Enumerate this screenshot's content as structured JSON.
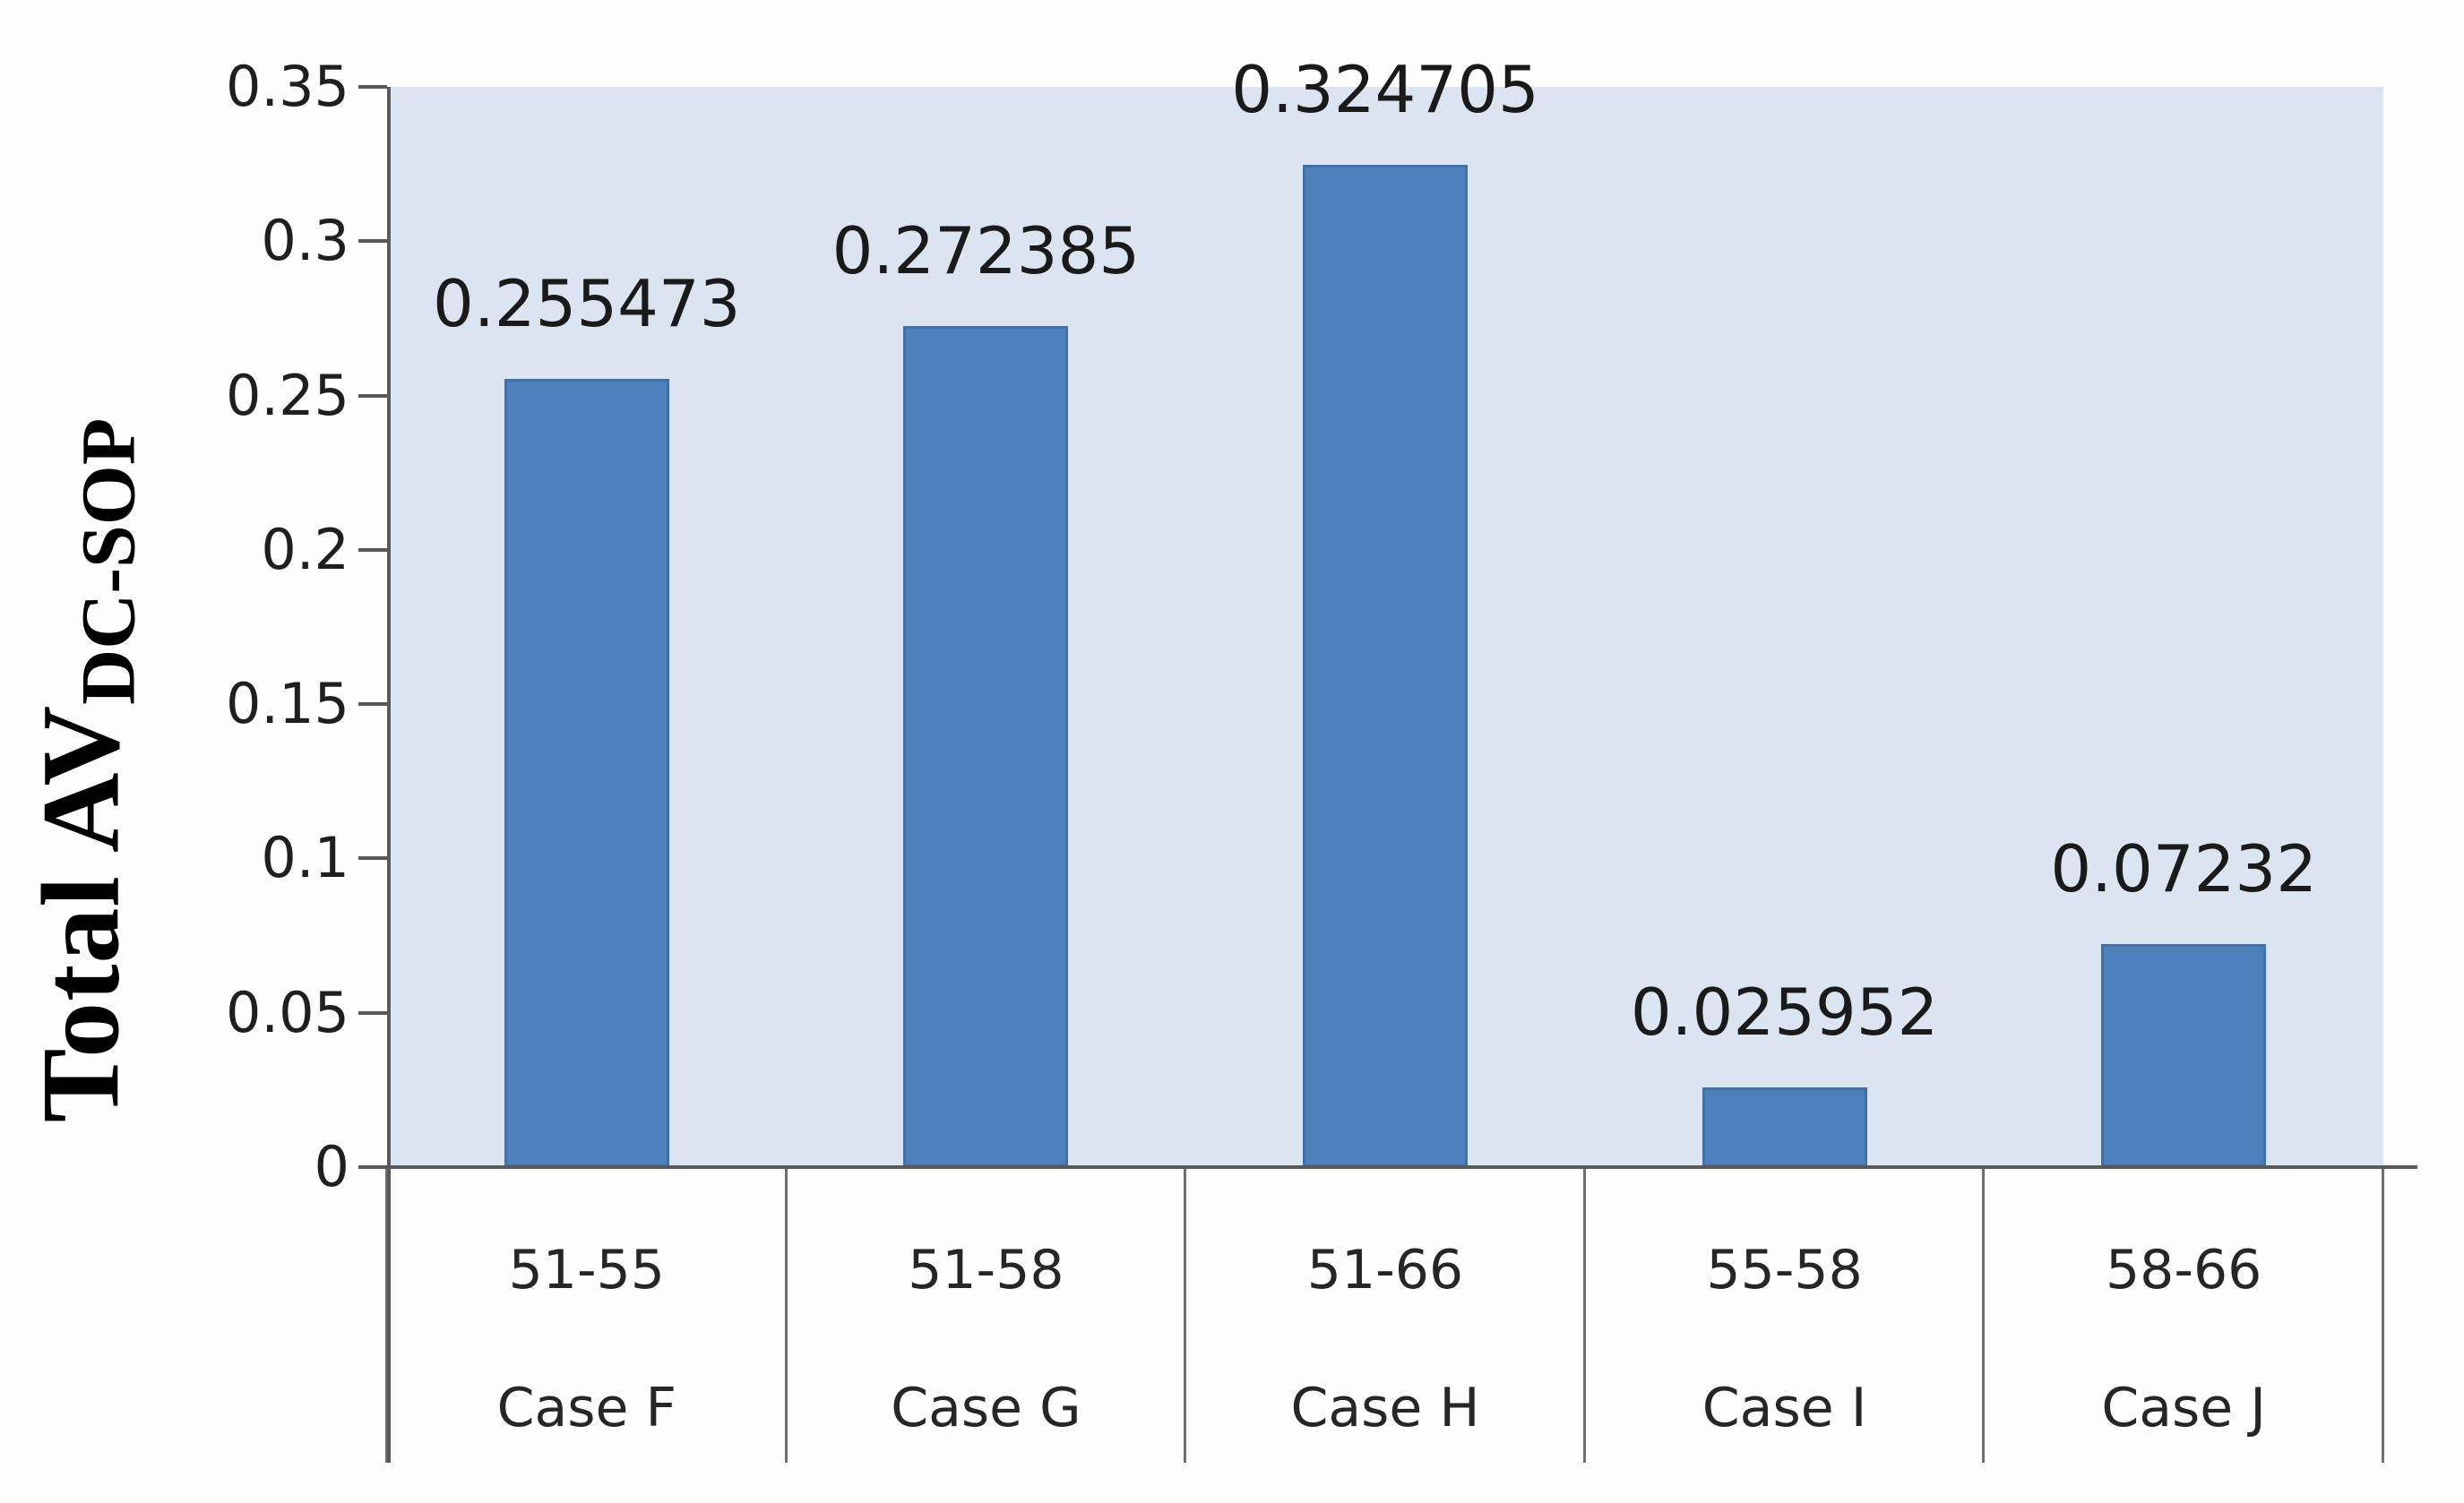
{
  "chart_data": {
    "type": "bar",
    "title": "",
    "ylabel_main": "Total AV",
    "ylabel_subscript": "DC-SOP",
    "xlabel": "",
    "categories": [
      {
        "range": "51-55",
        "case": "Case F"
      },
      {
        "range": "51-58",
        "case": "Case G"
      },
      {
        "range": "51-66",
        "case": "Case H"
      },
      {
        "range": "55-58",
        "case": "Case I"
      },
      {
        "range": "58-66",
        "case": "Case J"
      }
    ],
    "values": [
      0.255473,
      0.272385,
      0.324705,
      0.025952,
      0.07232
    ],
    "value_labels": [
      "0.255473",
      "0.272385",
      "0.324705",
      "0.025952",
      "0.07232"
    ],
    "y_ticks": [
      "0",
      "0.05",
      "0.1",
      "0.15",
      "0.2",
      "0.25",
      "0.3",
      "0.35"
    ],
    "ylim": [
      0,
      0.35
    ],
    "grid": false,
    "legend": "none",
    "colors": {
      "bar_fill": "#4e80bc",
      "bar_edge": "#3f6ba3",
      "plot_background": "#dbe5f1",
      "axis_line": "#595959",
      "separator_line": "#6f6f6f",
      "label_text": "#1a1a1a"
    }
  }
}
